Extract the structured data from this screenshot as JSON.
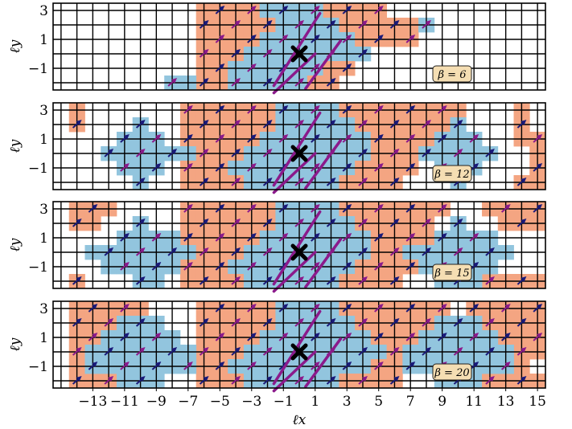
{
  "chart_data": {
    "type": "heatmap",
    "xlabel": "ℓx",
    "ylabel": "ℓy",
    "x_ticks": [
      -13,
      -11,
      -9,
      -7,
      -5,
      -3,
      -1,
      1,
      3,
      5,
      7,
      9,
      11,
      13,
      15
    ],
    "x_tick_labels": [
      "−13",
      "−11",
      "−9",
      "−7",
      "−5",
      "−3",
      "−1",
      "1",
      "3",
      "5",
      "7",
      "9",
      "11",
      "13",
      "15"
    ],
    "y_ticks": [
      3,
      1,
      -1
    ],
    "y_tick_labels": [
      "3",
      "1",
      "−1"
    ],
    "xlim": [
      -15,
      15
    ],
    "ylim": [
      -2,
      3
    ],
    "grid": true,
    "colors": {
      "orange": "#f4a582",
      "blue": "#92c5de",
      "arrow_navy": "#1a1a7a",
      "arrow_purple": "#8b1a8b",
      "bond_purple": "#8b1a8b",
      "marker": "#000000",
      "grid": "#000000",
      "badge_fill": "#f5deb3",
      "badge_stroke": "#222222"
    },
    "marker": {
      "x": 0,
      "y": 0
    },
    "panels": [
      {
        "beta_label": "β = 6",
        "orange_intervals": [
          {
            "y": 3,
            "ranges": [
              [
                -6,
                5
              ]
            ]
          },
          {
            "y": 2,
            "ranges": [
              [
                -6,
                7
              ]
            ]
          },
          {
            "y": 1,
            "ranges": [
              [
                -6,
                7
              ]
            ]
          },
          {
            "y": 0,
            "ranges": [
              [
                -6,
                4
              ]
            ]
          },
          {
            "y": -1,
            "ranges": [
              [
                -6,
                3
              ]
            ]
          },
          {
            "y": -2,
            "ranges": [
              [
                -6,
                2
              ]
            ]
          }
        ],
        "blue_intervals": [
          {
            "y": 3,
            "ranges": [
              [
                -2,
                1
              ]
            ]
          },
          {
            "y": 2,
            "ranges": [
              [
                -1,
                2
              ],
              [
                8,
                8
              ]
            ]
          },
          {
            "y": 1,
            "ranges": [
              [
                -2,
                3
              ]
            ]
          },
          {
            "y": 0,
            "ranges": [
              [
                -3,
                4
              ]
            ]
          },
          {
            "y": -1,
            "ranges": [
              [
                -4,
                1
              ]
            ]
          },
          {
            "y": -2,
            "ranges": [
              [
                -8,
                -7
              ],
              [
                -4,
                0
              ]
            ]
          }
        ]
      },
      {
        "beta_label": "β = 12",
        "orange_intervals": [
          {
            "y": 3,
            "ranges": [
              [
                -14,
                -14
              ],
              [
                -7,
                10
              ],
              [
                14,
                14
              ]
            ]
          },
          {
            "y": 2,
            "ranges": [
              [
                -14,
                -14
              ],
              [
                -7,
                9
              ],
              [
                14,
                14
              ]
            ]
          },
          {
            "y": 1,
            "ranges": [
              [
                -7,
                9
              ],
              [
                14,
                15
              ]
            ]
          },
          {
            "y": 0,
            "ranges": [
              [
                -7,
                8
              ],
              [
                15,
                15
              ]
            ]
          },
          {
            "y": -1,
            "ranges": [
              [
                -7,
                7
              ],
              [
                15,
                15
              ]
            ]
          },
          {
            "y": -2,
            "ranges": [
              [
                -7,
                6
              ],
              [
                14,
                15
              ]
            ]
          }
        ],
        "blue_intervals": [
          {
            "y": 3,
            "ranges": [
              [
                -1,
                2
              ]
            ]
          },
          {
            "y": 2,
            "ranges": [
              [
                -10,
                -10
              ],
              [
                -1,
                3
              ],
              [
                10,
                10
              ]
            ]
          },
          {
            "y": 1,
            "ranges": [
              [
                -11,
                -9
              ],
              [
                -2,
                4
              ],
              [
                9,
                11
              ]
            ]
          },
          {
            "y": 0,
            "ranges": [
              [
                -12,
                -7
              ],
              [
                -3,
                4
              ],
              [
                8,
                12
              ]
            ]
          },
          {
            "y": -1,
            "ranges": [
              [
                -11,
                -9
              ],
              [
                -4,
                3
              ],
              [
                9,
                11
              ]
            ]
          },
          {
            "y": -2,
            "ranges": [
              [
                -10,
                -10
              ],
              [
                -3,
                2
              ],
              [
                10,
                10
              ]
            ]
          }
        ]
      },
      {
        "beta_label": "β = 15",
        "orange_intervals": [
          {
            "y": 3,
            "ranges": [
              [
                -14,
                -12
              ],
              [
                -7,
                9
              ],
              [
                12,
                15
              ]
            ]
          },
          {
            "y": 2,
            "ranges": [
              [
                -14,
                -13
              ],
              [
                -7,
                8
              ],
              [
                13,
                15
              ]
            ]
          },
          {
            "y": 1,
            "ranges": [
              [
                -7,
                8
              ]
            ]
          },
          {
            "y": 0,
            "ranges": [
              [
                -7,
                8
              ]
            ]
          },
          {
            "y": -1,
            "ranges": [
              [
                -7,
                7
              ]
            ]
          },
          {
            "y": -2,
            "ranges": [
              [
                -14,
                -14
              ],
              [
                -7,
                6
              ],
              [
                12,
                15
              ]
            ]
          }
        ],
        "blue_intervals": [
          {
            "y": 3,
            "ranges": [
              [
                -1,
                2
              ]
            ]
          },
          {
            "y": 2,
            "ranges": [
              [
                -10,
                -10
              ],
              [
                -1,
                3
              ],
              [
                10,
                10
              ]
            ]
          },
          {
            "y": 1,
            "ranges": [
              [
                -11,
                -8
              ],
              [
                -2,
                4
              ],
              [
                9,
                12
              ]
            ]
          },
          {
            "y": 0,
            "ranges": [
              [
                -13,
                -7
              ],
              [
                -3,
                4
              ],
              [
                7,
                13
              ]
            ]
          },
          {
            "y": -1,
            "ranges": [
              [
                -12,
                -8
              ],
              [
                -4,
                3
              ],
              [
                8,
                12
              ]
            ]
          },
          {
            "y": -2,
            "ranges": [
              [
                -10,
                -9
              ],
              [
                -3,
                2
              ],
              [
                9,
                11
              ]
            ]
          }
        ]
      },
      {
        "beta_label": "β = 20",
        "orange_intervals": [
          {
            "y": 3,
            "ranges": [
              [
                -14,
                -10
              ],
              [
                -6,
                9
              ],
              [
                11,
                15
              ]
            ]
          },
          {
            "y": 2,
            "ranges": [
              [
                -14,
                -11
              ],
              [
                -6,
                9
              ],
              [
                12,
                15
              ]
            ]
          },
          {
            "y": 1,
            "ranges": [
              [
                -14,
                -13
              ],
              [
                -6,
                8
              ],
              [
                13,
                15
              ]
            ]
          },
          {
            "y": 0,
            "ranges": [
              [
                -14,
                -14
              ],
              [
                -6,
                7
              ],
              [
                14,
                15
              ]
            ]
          },
          {
            "y": -1,
            "ranges": [
              [
                -14,
                -14
              ],
              [
                -6,
                7
              ],
              [
                14,
                14
              ]
            ]
          },
          {
            "y": -2,
            "ranges": [
              [
                -14,
                -11
              ],
              [
                -6,
                6
              ],
              [
                11,
                15
              ]
            ]
          }
        ],
        "blue_intervals": [
          {
            "y": 3,
            "ranges": [
              [
                -1,
                2
              ]
            ]
          },
          {
            "y": 2,
            "ranges": [
              [
                -11,
                -9
              ],
              [
                -1,
                3
              ],
              [
                9,
                11
              ]
            ]
          },
          {
            "y": 1,
            "ranges": [
              [
                -12,
                -8
              ],
              [
                -2,
                4
              ],
              [
                8,
                12
              ]
            ]
          },
          {
            "y": 0,
            "ranges": [
              [
                -13,
                -7
              ],
              [
                -3,
                5
              ],
              [
                7,
                13
              ]
            ]
          },
          {
            "y": -1,
            "ranges": [
              [
                -13,
                -7
              ],
              [
                -4,
                4
              ],
              [
                7,
                13
              ]
            ]
          },
          {
            "y": -2,
            "ranges": [
              [
                -11,
                -9
              ],
              [
                -3,
                2
              ],
              [
                9,
                11
              ]
            ]
          }
        ]
      }
    ]
  }
}
